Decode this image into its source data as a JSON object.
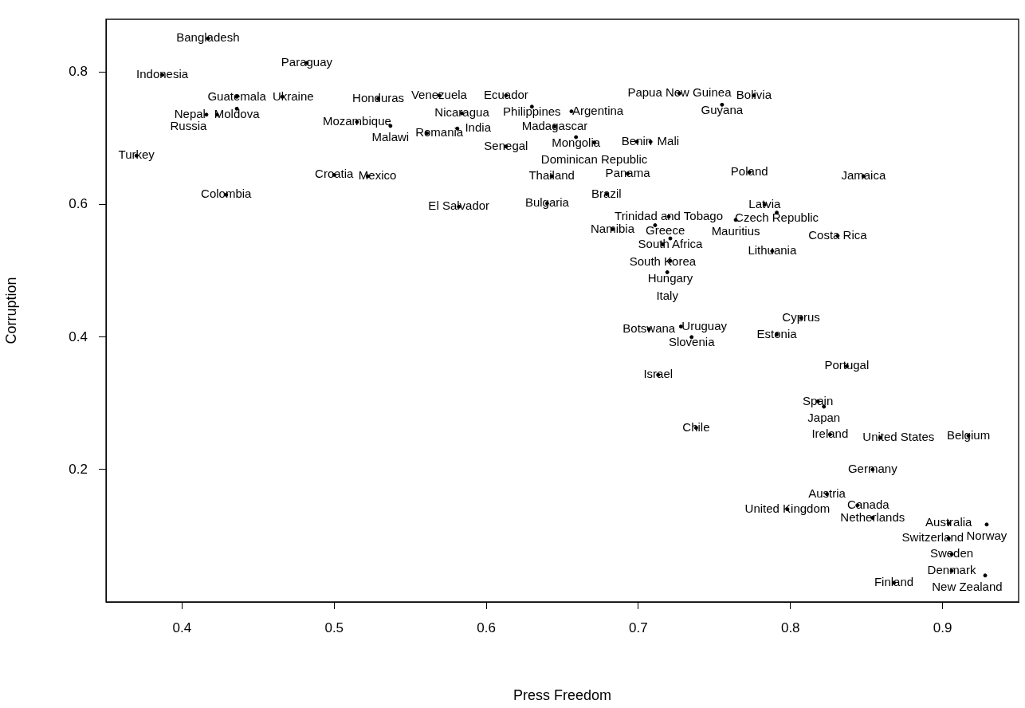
{
  "chart_data": {
    "type": "scatter",
    "xlabel": "Press Freedom",
    "ylabel": "Corruption",
    "marker": "circle",
    "grid": false,
    "legend": false,
    "xlim": [
      0.35,
      0.95
    ],
    "ylim": [
      0.0,
      0.88
    ],
    "xticks": [
      0.4,
      0.5,
      0.6,
      0.7,
      0.8,
      0.9
    ],
    "yticks": [
      0.2,
      0.4,
      0.6,
      0.8
    ],
    "series": [
      {
        "color": "#000000",
        "x": [
          0.417,
          0.387,
          0.482,
          0.436,
          0.466,
          0.436,
          0.416,
          0.423,
          0.37,
          0.429,
          0.529,
          0.515,
          0.537,
          0.5,
          0.522,
          0.561,
          0.581,
          0.569,
          0.613,
          0.584,
          0.63,
          0.656,
          0.645,
          0.659,
          0.613,
          0.671,
          0.699,
          0.708,
          0.727,
          0.776,
          0.755,
          0.643,
          0.693,
          0.679,
          0.64,
          0.582,
          0.773,
          0.848,
          0.783,
          0.791,
          0.72,
          0.764,
          0.683,
          0.711,
          0.721,
          0.716,
          0.831,
          0.788,
          0.721,
          0.719,
          0.807,
          0.791,
          0.707,
          0.728,
          0.735,
          0.713,
          0.837,
          0.818,
          0.822,
          0.738,
          0.826,
          0.859,
          0.917,
          0.854,
          0.824,
          0.844,
          0.798,
          0.854,
          0.904,
          0.929,
          0.904,
          0.906,
          0.906,
          0.928,
          0.868
        ],
        "values": [
          0.851,
          0.796,
          0.814,
          0.763,
          0.763,
          0.745,
          0.736,
          0.736,
          0.674,
          0.615,
          0.76,
          0.725,
          0.719,
          0.645,
          0.643,
          0.708,
          0.715,
          0.765,
          0.765,
          0.738,
          0.748,
          0.741,
          0.718,
          0.702,
          0.688,
          0.694,
          0.695,
          0.695,
          0.768,
          0.765,
          0.751,
          0.643,
          0.647,
          0.616,
          0.602,
          0.597,
          0.649,
          0.643,
          0.6,
          0.588,
          0.582,
          0.577,
          0.563,
          0.569,
          0.549,
          0.54,
          0.553,
          0.53,
          0.515,
          0.498,
          0.429,
          0.404,
          0.412,
          0.416,
          0.4,
          0.343,
          0.356,
          0.303,
          0.295,
          0.263,
          0.253,
          0.248,
          0.251,
          0.2,
          0.163,
          0.146,
          0.14,
          0.127,
          0.119,
          0.117,
          0.096,
          0.072,
          0.047,
          0.04,
          0.029
        ],
        "value_labels": [
          "Bangladesh",
          "Indonesia",
          "Paraguay",
          "Guatemala",
          "Ukraine",
          "Moldova",
          "Nepal",
          "Russia",
          "Turkey",
          "Colombia",
          "Honduras",
          "Mozambique",
          "Malawi",
          "Croatia",
          "Mexico",
          "Romania",
          "India",
          "Venezuela",
          "Ecuador",
          "Nicaragua",
          "Philippines",
          "Argentina",
          "Madagascar",
          "Mongolia",
          "Senegal",
          "Dominican Republic",
          "Benin",
          "Mali",
          "Papua New Guinea",
          "Bolivia",
          "Guyana",
          "Thailand",
          "Panama",
          "Brazil",
          "Bulgaria",
          "El Salvador",
          "Poland",
          "Jamaica",
          "Latvia",
          "Czech Republic",
          "Trinidad and Tobago",
          "Mauritius",
          "Namibia",
          "Greece",
          "South Africa",
          "South Korea",
          "Costa Rica",
          "Lithuania",
          "Hungary",
          "Italy",
          "Cyprus",
          "Estonia",
          "Botswana",
          "Uruguay",
          "Slovenia",
          "Israel",
          "Portugal",
          "Spain",
          "Japan",
          "Chile",
          "Ireland",
          "United States",
          "Belgium",
          "Germany",
          "Austria",
          "Canada",
          "United Kingdom",
          "Netherlands",
          "Australia",
          "Norway",
          "Switzerland",
          "Sweden",
          "Denmark",
          "New Zealand",
          "Finland"
        ]
      }
    ]
  }
}
